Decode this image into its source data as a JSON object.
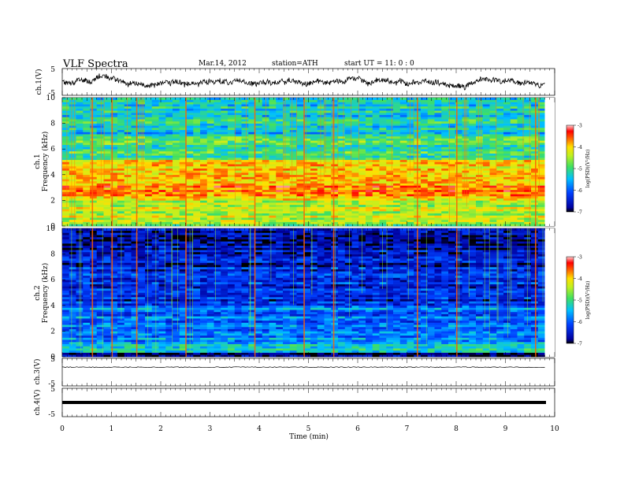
{
  "header": {
    "title": "VLF  Spectra",
    "date": "Mar.14, 2012",
    "station": "station=ATH",
    "start": "start  UT  =    11: 0  : 0"
  },
  "chart_data": [
    {
      "type": "line",
      "panel": "ch1-waveform",
      "ylabel": "ch.1(V)",
      "xlim": [
        0,
        10
      ],
      "ylim": [
        -5,
        5
      ],
      "yticks": [
        "5",
        "-5"
      ],
      "line_color": "#000000",
      "description_values": {
        "mean": 0,
        "approx_range": [
          -3,
          3
        ]
      }
    },
    {
      "type": "heatmap",
      "panel": "ch1-spectrogram",
      "ylabel_channel": "ch.1",
      "ylabel": "Frequency  (kHz)",
      "xlim": [
        0,
        9.8
      ],
      "ylim": [
        0,
        10
      ],
      "yticks": [
        "0",
        "2",
        "4",
        "6",
        "8",
        "10"
      ],
      "colorbar": {
        "label": "log(PSD)(V²/Hz)",
        "range": [
          -7,
          -3
        ],
        "ticks": [
          "-3",
          "-4",
          "-5",
          "-6",
          "-7"
        ]
      },
      "bands_log_psd": [
        {
          "f_khz": [
            0.0,
            0.5
          ],
          "value": -4.6
        },
        {
          "f_khz": [
            0.5,
            2.0
          ],
          "value": -4.3
        },
        {
          "f_khz": [
            2.0,
            3.9
          ],
          "value": -3.8
        },
        {
          "f_khz": [
            3.9,
            5.2
          ],
          "value": -4.2
        },
        {
          "f_khz": [
            5.2,
            7.0
          ],
          "value": -5.0
        },
        {
          "f_khz": [
            7.0,
            10.0
          ],
          "value": -5.3
        }
      ],
      "impulse_times_min": [
        0.6,
        1.0,
        1.5,
        2.5,
        3.9,
        4.9,
        5.5,
        7.2,
        8.0,
        9.6
      ]
    },
    {
      "type": "heatmap",
      "panel": "ch2-spectrogram",
      "ylabel_channel": "ch.2",
      "ylabel": "Frequency  (kHz)",
      "xlim": [
        0,
        9.8
      ],
      "ylim": [
        0,
        10
      ],
      "yticks": [
        "0",
        "2",
        "4",
        "6",
        "8",
        "10"
      ],
      "colorbar": {
        "label": "log(PSD)(V²/Hz)",
        "range": [
          -7,
          -3
        ],
        "ticks": [
          "-3",
          "-4",
          "-5",
          "-6",
          "-7"
        ]
      },
      "bands_log_psd": [
        {
          "f_khz": [
            0.0,
            0.4
          ],
          "value": -6.8
        },
        {
          "f_khz": [
            0.4,
            1.2
          ],
          "value": -5.4
        },
        {
          "f_khz": [
            1.2,
            4.0
          ],
          "value": -5.9
        },
        {
          "f_khz": [
            4.0,
            7.0
          ],
          "value": -6.3
        },
        {
          "f_khz": [
            7.0,
            10.0
          ],
          "value": -6.6
        }
      ],
      "impulse_times_min": [
        0.6,
        1.0,
        1.5,
        2.5,
        3.9,
        4.9,
        5.5,
        7.2,
        8.0,
        9.6
      ]
    },
    {
      "type": "line",
      "panel": "ch3-waveform",
      "ylabel": "ch.3(V)",
      "xlim": [
        0,
        10
      ],
      "ylim": [
        -5,
        5
      ],
      "yticks": [
        "5",
        "-5"
      ],
      "level_v": 0.0
    },
    {
      "type": "line",
      "panel": "ch4-waveform",
      "ylabel": "ch.4(V)",
      "xlim": [
        0,
        10
      ],
      "ylim": [
        -5,
        5
      ],
      "yticks": [
        "5",
        "-5"
      ],
      "level_v": 0.0,
      "xlabel": "Time  (min)",
      "xticks": [
        "0",
        "1",
        "2",
        "3",
        "4",
        "5",
        "6",
        "7",
        "8",
        "9",
        "10"
      ]
    }
  ]
}
